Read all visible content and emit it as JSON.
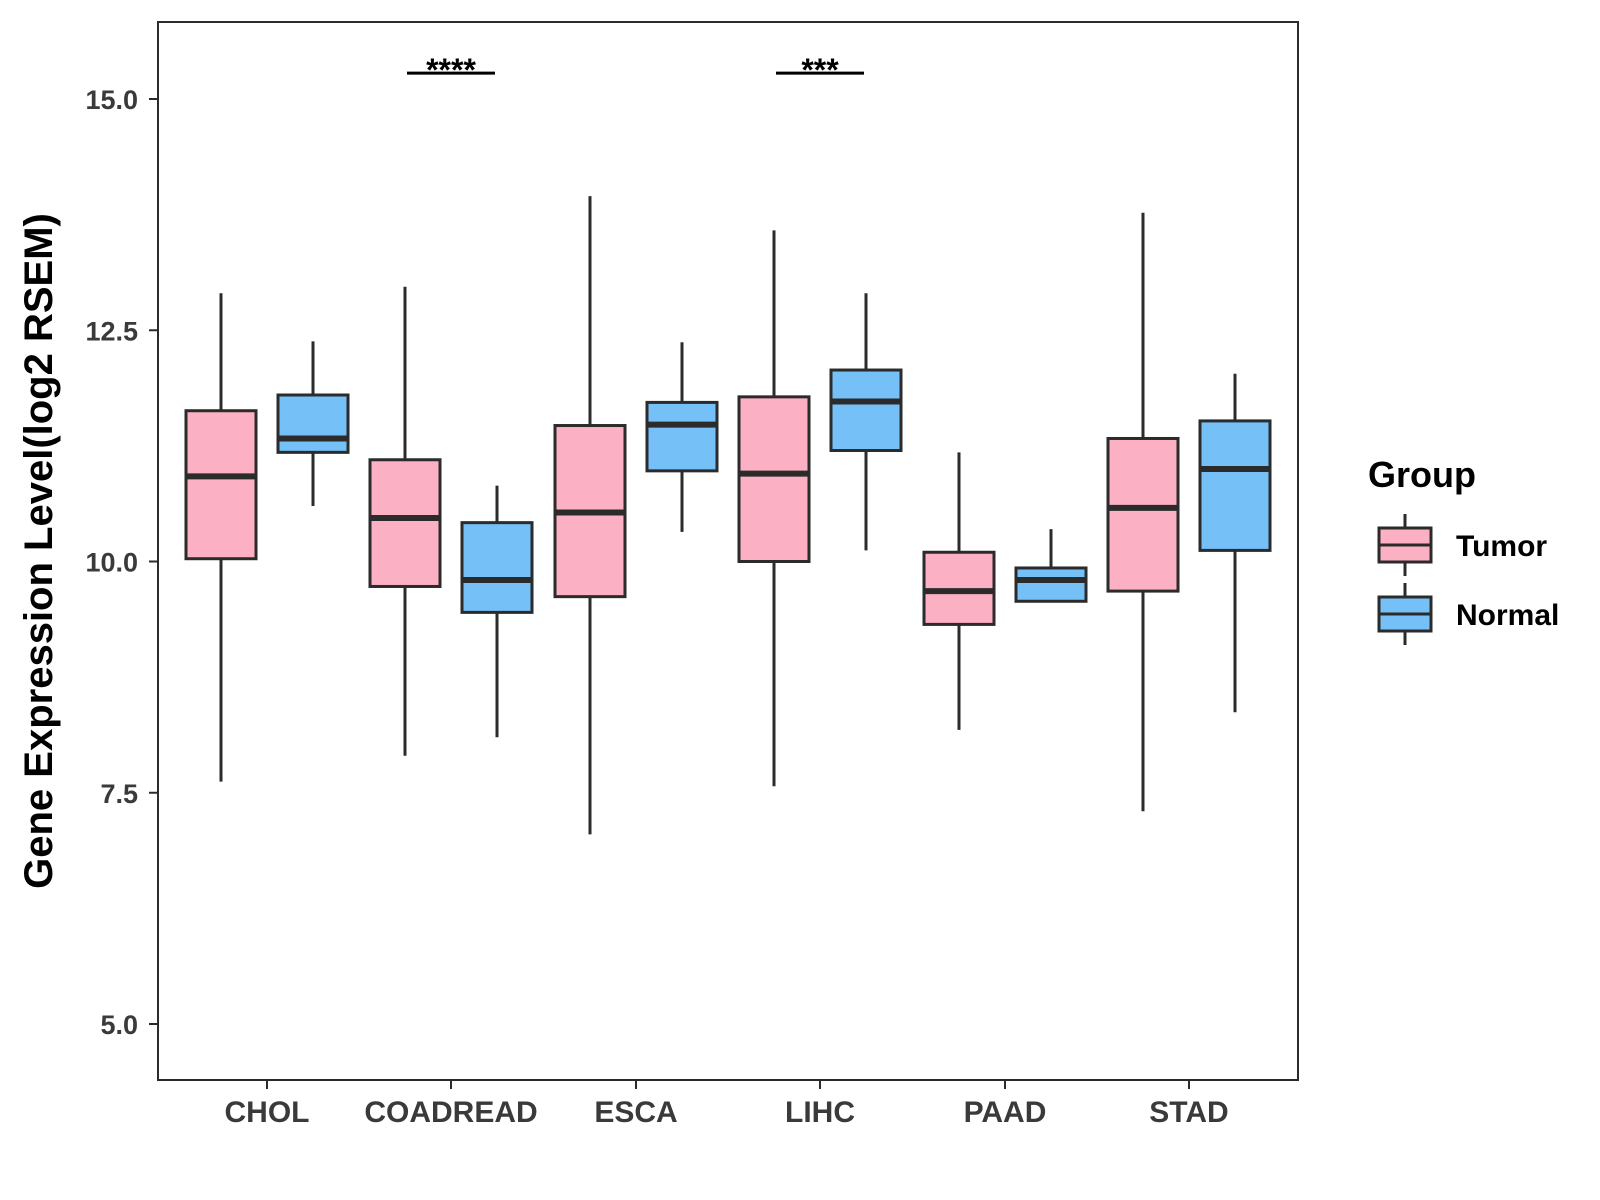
{
  "chart_data": {
    "type": "boxplot",
    "title": "",
    "xlabel": "",
    "ylabel": "Gene Expression Level(log2 RSEM)",
    "ylim": [
      4.45,
      15.85
    ],
    "yticks": [
      5.0,
      7.5,
      10.0,
      12.5,
      15.0
    ],
    "ytick_labels": [
      "5.0",
      "7.5",
      "10.0",
      "12.5",
      "15.0"
    ],
    "categories": [
      "CHOL",
      "COADREAD",
      "ESCA",
      "LIHC",
      "PAAD",
      "STAD"
    ],
    "grid": false,
    "legend": {
      "title": "Group",
      "position": "right",
      "entries": [
        {
          "name": "Tumor",
          "color": "#FBB0C3"
        },
        {
          "name": "Normal",
          "color": "#75C0F7"
        }
      ]
    },
    "series": [
      {
        "name": "Tumor",
        "color": "#FBB0C3",
        "boxes": [
          {
            "category": "CHOL",
            "min": 7.62,
            "q1": 10.03,
            "median": 10.92,
            "q3": 11.63,
            "max": 12.9
          },
          {
            "category": "COADREAD",
            "min": 7.9,
            "q1": 9.73,
            "median": 10.47,
            "q3": 11.1,
            "max": 12.97
          },
          {
            "category": "ESCA",
            "min": 7.05,
            "q1": 9.62,
            "median": 10.53,
            "q3": 11.47,
            "max": 13.95
          },
          {
            "category": "LIHC",
            "min": 7.57,
            "q1": 10.0,
            "median": 10.95,
            "q3": 11.78,
            "max": 13.58
          },
          {
            "category": "PAAD",
            "min": 8.18,
            "q1": 9.32,
            "median": 9.68,
            "q3": 10.1,
            "max": 11.18
          },
          {
            "category": "STAD",
            "min": 7.3,
            "q1": 9.68,
            "median": 10.58,
            "q3": 11.33,
            "max": 13.77
          }
        ]
      },
      {
        "name": "Normal",
        "color": "#75C0F7",
        "boxes": [
          {
            "category": "CHOL",
            "min": 10.6,
            "q1": 11.18,
            "median": 11.33,
            "q3": 11.8,
            "max": 12.38
          },
          {
            "category": "COADREAD",
            "min": 8.1,
            "q1": 9.45,
            "median": 9.8,
            "q3": 10.42,
            "max": 10.82
          },
          {
            "category": "ESCA",
            "min": 10.32,
            "q1": 10.98,
            "median": 11.48,
            "q3": 11.72,
            "max": 12.37
          },
          {
            "category": "LIHC",
            "min": 10.12,
            "q1": 11.2,
            "median": 11.73,
            "q3": 12.07,
            "max": 12.9
          },
          {
            "category": "PAAD",
            "min": 9.57,
            "q1": 9.57,
            "median": 9.8,
            "q3": 9.93,
            "max": 10.35
          },
          {
            "category": "STAD",
            "min": 8.37,
            "q1": 10.12,
            "median": 11.0,
            "q3": 11.52,
            "max": 12.03
          }
        ]
      }
    ],
    "annotations": [
      {
        "category": "COADREAD",
        "label": "****",
        "y": 15.28
      },
      {
        "category": "LIHC",
        "label": "***",
        "y": 15.28
      }
    ]
  }
}
